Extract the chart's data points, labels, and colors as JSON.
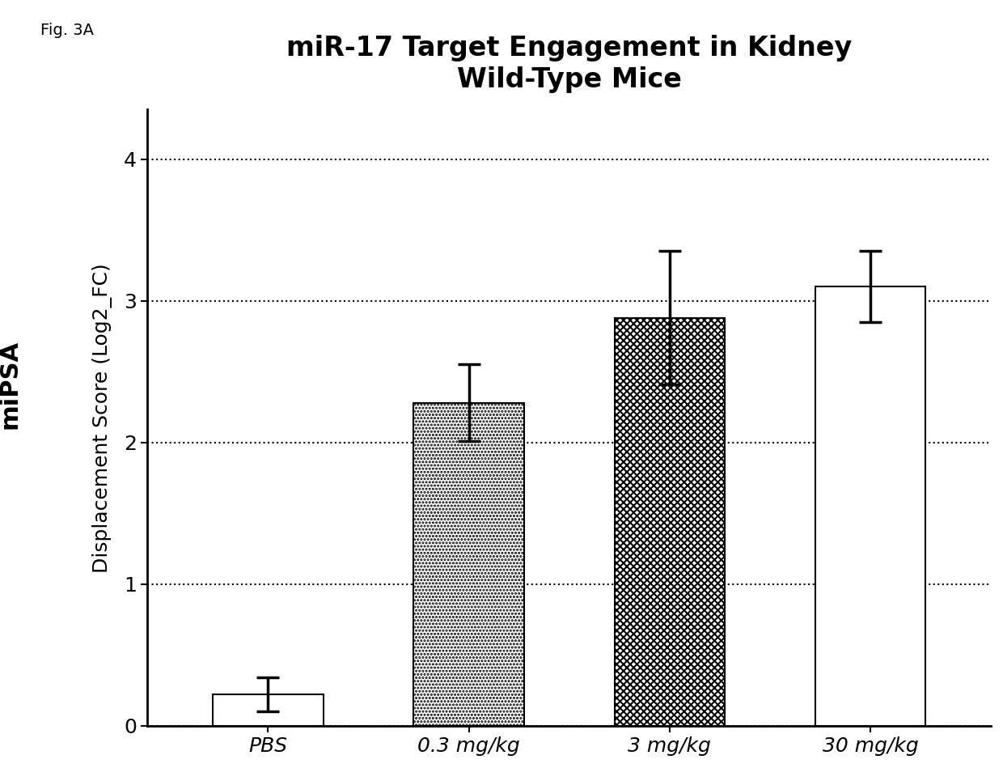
{
  "title": "miR-17 Target Engagement in Kidney\nWild-Type Mice",
  "ylabel_inner": "Displacement Score (Log2_FC)",
  "ylabel_outer": "miPSA",
  "categories": [
    "PBS",
    "0.3 mg/kg",
    "3 mg/kg",
    "30 mg/kg"
  ],
  "values": [
    0.22,
    2.28,
    2.88,
    3.1
  ],
  "errors_upper": [
    0.12,
    0.27,
    0.47,
    0.25
  ],
  "errors_lower": [
    0.12,
    0.27,
    0.47,
    0.25
  ],
  "ylim": [
    0,
    4.35
  ],
  "yticks": [
    0,
    1,
    2,
    3,
    4
  ],
  "background_color": "#ffffff",
  "bar_edge_color": "#000000",
  "error_color": "#000000",
  "title_fontsize": 24,
  "inner_ylabel_fontsize": 18,
  "outer_ylabel_fontsize": 22,
  "tick_fontsize": 18,
  "fig_label": "Fig. 3A",
  "hatch_patterns": [
    "",
    "....",
    "xxxx",
    "===="
  ],
  "bar_width": 0.55
}
